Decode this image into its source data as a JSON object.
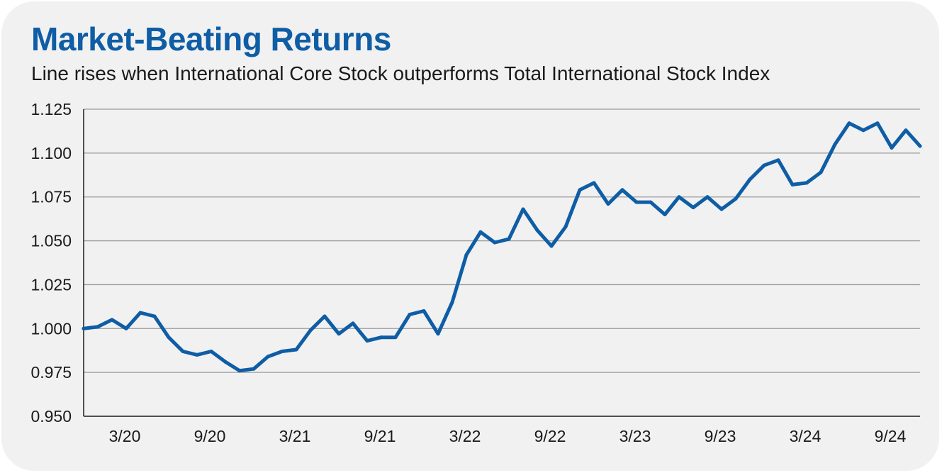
{
  "colors": {
    "title": "#0e5da5",
    "line": "#0e5da5",
    "grid": "#9a9a9a",
    "axis": "#1a1a1a",
    "background": "#f1f1f2"
  },
  "chart_data": {
    "type": "line",
    "title": "Market-Beating Returns",
    "subtitle": "Line rises when International Core Stock outperforms Total International Stock Index",
    "xlabel": "",
    "ylabel": "",
    "ylim": [
      0.95,
      1.125
    ],
    "yticks": [
      0.95,
      0.975,
      1.0,
      1.025,
      1.05,
      1.075,
      1.1,
      1.125
    ],
    "ytick_labels": [
      "0.950",
      "0.975",
      "1.000",
      "1.025",
      "1.050",
      "1.075",
      "1.100",
      "1.125"
    ],
    "xtick_labels": [
      "3/20",
      "9/20",
      "3/21",
      "9/21",
      "3/22",
      "9/22",
      "3/23",
      "9/23",
      "3/24",
      "9/24"
    ],
    "grid": true,
    "series": [
      {
        "values": [
          1.0,
          1.001,
          1.005,
          1.0,
          1.009,
          1.007,
          0.995,
          0.987,
          0.985,
          0.987,
          0.981,
          0.976,
          0.977,
          0.984,
          0.987,
          0.988,
          0.999,
          1.007,
          0.997,
          1.003,
          0.993,
          0.995,
          0.995,
          1.008,
          1.01,
          0.997,
          1.015,
          1.042,
          1.055,
          1.049,
          1.051,
          1.068,
          1.056,
          1.047,
          1.058,
          1.079,
          1.083,
          1.071,
          1.079,
          1.072,
          1.072,
          1.065,
          1.075,
          1.069,
          1.075,
          1.068,
          1.074,
          1.085,
          1.093,
          1.096,
          1.082,
          1.083,
          1.089,
          1.105,
          1.117,
          1.113,
          1.117,
          1.103,
          1.113,
          1.104
        ]
      }
    ]
  }
}
